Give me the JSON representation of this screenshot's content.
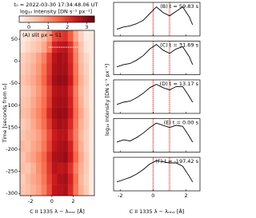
{
  "chart_data": [
    {
      "type": "heatmap",
      "title": "t₀ = 2022-03-30 17:34:48.06 UT",
      "colorbar_label": "log₁₀ Intensity [DN s⁻¹ px⁻¹]",
      "clim": [
        -0.5,
        3.4
      ],
      "cticks": [
        0,
        1,
        2,
        3
      ],
      "panel_label": "(A) slit px = 51",
      "ylabel": "Time [seconds from t₀]",
      "xlabel": "C II 1335 λ − λᵣₑₛₜ [Å]",
      "xlim": [
        -3,
        4
      ],
      "ylim": [
        -305,
        70
      ],
      "xticks": [
        -2,
        0,
        2
      ],
      "yticks": [
        -300,
        -250,
        -200,
        -150,
        -100,
        -50,
        0,
        50
      ],
      "x": [
        -2.75,
        -2.25,
        -1.75,
        -1.25,
        -0.75,
        -0.25,
        0.25,
        0.75,
        1.25,
        1.75,
        2.25,
        2.75,
        3.25,
        3.75
      ],
      "y": [
        -292.5,
        -267.5,
        -242.5,
        -217.5,
        -192.5,
        -167.5,
        -142.5,
        -117.5,
        -92.5,
        -67.5,
        -42.5,
        -17.5,
        7.5,
        32.5,
        57.5
      ],
      "z": [
        [
          0.3,
          0.4,
          0.6,
          0.8,
          1.2,
          1.8,
          2.5,
          2.6,
          2.7,
          2.2,
          1.3,
          0.6,
          0.2,
          -0.3
        ],
        [
          0.2,
          0.5,
          0.7,
          0.9,
          1.3,
          1.9,
          2.4,
          2.7,
          2.8,
          2.3,
          1.4,
          0.5,
          0.1,
          -0.3
        ],
        [
          0.4,
          0.3,
          0.6,
          1.0,
          1.4,
          2.0,
          2.6,
          2.5,
          2.6,
          2.1,
          1.2,
          0.6,
          0.2,
          -0.3
        ],
        [
          0.3,
          0.6,
          0.8,
          1.1,
          1.5,
          2.1,
          2.7,
          2.8,
          2.9,
          2.4,
          1.5,
          0.7,
          0.2,
          -0.3
        ],
        [
          0.5,
          0.4,
          0.7,
          0.9,
          1.3,
          1.9,
          2.5,
          2.7,
          2.8,
          2.3,
          1.3,
          0.6,
          0.1,
          -0.3
        ],
        [
          0.3,
          0.5,
          0.6,
          0.8,
          1.2,
          1.8,
          2.4,
          2.6,
          2.6,
          2.0,
          1.2,
          0.5,
          0.1,
          -0.3
        ],
        [
          0.2,
          0.4,
          0.7,
          1.0,
          1.4,
          2.0,
          2.6,
          2.8,
          2.7,
          2.2,
          1.3,
          0.6,
          0.2,
          -0.3
        ],
        [
          0.4,
          0.5,
          0.8,
          1.1,
          1.5,
          2.2,
          2.8,
          2.9,
          2.9,
          2.4,
          1.4,
          0.7,
          0.2,
          -0.3
        ],
        [
          0.3,
          0.4,
          0.7,
          1.0,
          1.4,
          2.0,
          2.7,
          2.8,
          2.8,
          2.3,
          1.3,
          0.6,
          0.1,
          -0.3
        ],
        [
          0.2,
          0.3,
          0.6,
          0.9,
          1.3,
          1.9,
          2.6,
          2.7,
          2.7,
          2.2,
          1.2,
          0.5,
          0.1,
          -0.3
        ],
        [
          0.3,
          0.5,
          0.7,
          1.0,
          1.5,
          2.1,
          2.8,
          2.9,
          2.9,
          2.4,
          1.4,
          0.6,
          0.2,
          -0.3
        ],
        [
          0.2,
          0.4,
          0.6,
          0.9,
          1.4,
          2.0,
          2.7,
          2.8,
          2.8,
          2.3,
          1.3,
          0.5,
          0.1,
          -0.3
        ],
        [
          0.1,
          0.3,
          0.5,
          0.8,
          1.2,
          1.9,
          2.6,
          2.8,
          2.7,
          2.2,
          1.2,
          0.4,
          0.0,
          -0.3
        ],
        [
          -0.2,
          0.0,
          0.2,
          0.4,
          0.7,
          1.3,
          2.3,
          2.5,
          2.6,
          2.1,
          1.1,
          0.3,
          -0.2,
          -0.3
        ],
        [
          -0.3,
          -0.2,
          0.0,
          0.2,
          0.4,
          0.9,
          1.8,
          2.0,
          2.1,
          1.6,
          0.7,
          0.1,
          -0.3,
          -0.3
        ]
      ],
      "cut_time": 31.69,
      "cut_xlim": [
        -0.3,
        2.5
      ]
    },
    {
      "type": "line",
      "label": "(B) t = 59.83 s",
      "ylabel": "log₁₀ Intensity [DN s⁻¹ px⁻¹]",
      "xlim": [
        -2.4,
        2.85
      ],
      "ylim": [
        0,
        3
      ],
      "xticks": [
        -2,
        0,
        2
      ],
      "ref_lines": [
        0,
        1
      ],
      "x": [
        -2.2,
        -1.8,
        -1.4,
        -1.0,
        -0.6,
        -0.2,
        0.2,
        0.6,
        1.0,
        1.4,
        1.8,
        2.2,
        2.4
      ],
      "values": [
        0.6,
        0.8,
        0.9,
        1.1,
        1.4,
        2.0,
        2.6,
        2.1,
        1.8,
        2.2,
        2.6,
        1.7,
        1.0
      ]
    },
    {
      "type": "line",
      "label": "(C) t = 31.69 s",
      "xlim": [
        -2.4,
        2.85
      ],
      "ylim": [
        0,
        3
      ],
      "xticks": [
        -2,
        0,
        2
      ],
      "ref_lines": [
        0,
        1
      ],
      "x": [
        -2.2,
        -1.8,
        -1.4,
        -1.0,
        -0.6,
        -0.2,
        0.2,
        0.6,
        1.0,
        1.4,
        1.8,
        2.2,
        2.4
      ],
      "values": [
        0.7,
        0.9,
        1.0,
        1.3,
        1.7,
        2.3,
        2.7,
        2.2,
        1.9,
        2.3,
        2.5,
        1.6,
        0.9
      ]
    },
    {
      "type": "line",
      "label": "(D) t = 13.17 s",
      "xlim": [
        -2.4,
        2.85
      ],
      "ylim": [
        0,
        3
      ],
      "xticks": [
        -2,
        0,
        2
      ],
      "ref_lines": [
        0,
        1
      ],
      "x": [
        -2.2,
        -1.8,
        -1.4,
        -1.0,
        -0.6,
        -0.2,
        0.2,
        0.6,
        1.0,
        1.4,
        1.8,
        2.2,
        2.4
      ],
      "values": [
        0.8,
        1.0,
        1.1,
        1.4,
        1.8,
        2.3,
        2.6,
        2.3,
        2.1,
        2.4,
        2.4,
        1.5,
        1.0
      ]
    },
    {
      "type": "line",
      "label": "(E) t = 0.00 s",
      "xlim": [
        -2.4,
        2.85
      ],
      "ylim": [
        0,
        3
      ],
      "xticks": [
        -2,
        0,
        2
      ],
      "ref_lines": [
        0,
        1
      ],
      "x": [
        -2.2,
        -1.8,
        -1.4,
        -1.0,
        -0.6,
        -0.2,
        0.2,
        0.6,
        1.0,
        1.4,
        1.8,
        2.2,
        2.4
      ],
      "values": [
        0.9,
        1.1,
        1.0,
        1.3,
        1.7,
        2.2,
        2.6,
        2.4,
        2.2,
        2.4,
        2.3,
        1.4,
        0.9
      ]
    },
    {
      "type": "line",
      "label": "(F) t = -197.42 s",
      "xlabel": "C II 1335 λ − λᵣₑₛₜ [Å]",
      "xlim": [
        -2.4,
        2.85
      ],
      "ylim": [
        0,
        3
      ],
      "xticks": [
        -2,
        0,
        2
      ],
      "ref_lines": [
        0,
        1
      ],
      "x": [
        -2.2,
        -1.8,
        -1.4,
        -1.0,
        -0.6,
        -0.2,
        0.2,
        0.6,
        1.0,
        1.4,
        1.8,
        2.2,
        2.4
      ],
      "values": [
        0.8,
        1.0,
        1.2,
        1.5,
        1.9,
        2.4,
        2.7,
        2.6,
        2.5,
        2.5,
        2.2,
        1.3,
        0.8
      ]
    }
  ]
}
